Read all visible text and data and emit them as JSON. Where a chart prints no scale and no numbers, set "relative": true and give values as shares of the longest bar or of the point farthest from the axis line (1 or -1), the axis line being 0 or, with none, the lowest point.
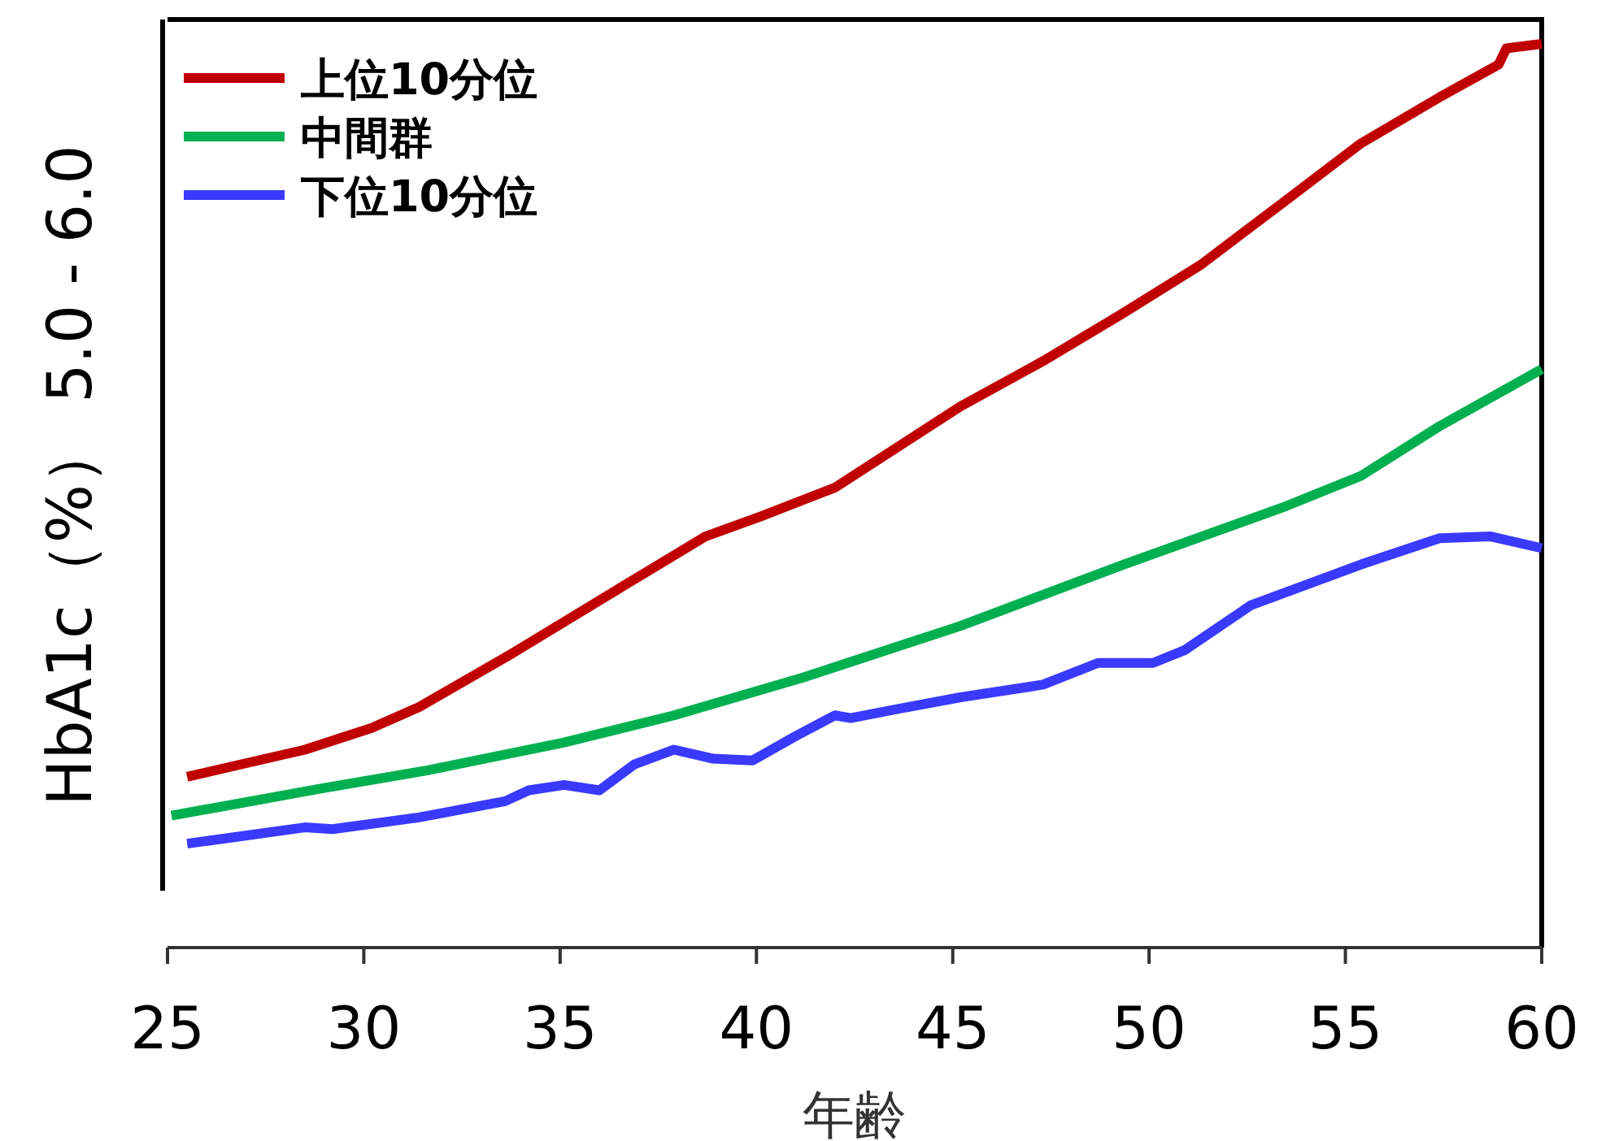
{
  "chart_data": {
    "type": "line",
    "xlabel": "年齢",
    "ylabel": "HbA1c（%） 5.0 - 6.0",
    "relative": true,
    "xlim": [
      25,
      60
    ],
    "xticks": [
      25,
      30,
      35,
      40,
      45,
      50,
      55,
      60
    ],
    "legend": "top left",
    "series": [
      {
        "name": "上位10分位",
        "color": "#c00000",
        "x": [
          25.5,
          26.9,
          28.5,
          30.2,
          31.4,
          33.8,
          36.3,
          38.7,
          40.1,
          42.0,
          43.6,
          45.2,
          47.3,
          49.3,
          51.3,
          53.4,
          55.4,
          57.4,
          58.9,
          59.1,
          60
        ],
        "values": [
          0.189,
          0.203,
          0.219,
          0.243,
          0.266,
          0.326,
          0.392,
          0.455,
          0.477,
          0.509,
          0.554,
          0.599,
          0.649,
          0.701,
          0.755,
          0.824,
          0.89,
          0.941,
          0.977,
          0.995,
          1
        ]
      },
      {
        "name": "中間群",
        "color": "#00b050",
        "x": [
          25.1,
          28.9,
          31.6,
          35.1,
          37.9,
          41.2,
          45.2,
          49.3,
          53.4,
          55.4,
          57.4,
          60
        ],
        "values": [
          0.146,
          0.176,
          0.196,
          0.227,
          0.257,
          0.299,
          0.356,
          0.423,
          0.487,
          0.522,
          0.577,
          0.64
        ]
      },
      {
        "name": "下位10分位",
        "color": "#3a3aff",
        "x": [
          25.5,
          28.5,
          29.2,
          31.4,
          33.6,
          34.2,
          35.1,
          36.0,
          36.9,
          37.9,
          38.9,
          39.9,
          41.0,
          42.0,
          42.4,
          43.6,
          45.2,
          47.3,
          48.7,
          50.1,
          50.9,
          52.6,
          55.4,
          57.4,
          58.7,
          60
        ],
        "values": [
          0.115,
          0.133,
          0.131,
          0.144,
          0.162,
          0.174,
          0.18,
          0.174,
          0.203,
          0.219,
          0.209,
          0.207,
          0.234,
          0.257,
          0.254,
          0.264,
          0.277,
          0.291,
          0.315,
          0.315,
          0.329,
          0.379,
          0.424,
          0.453,
          0.455,
          0.442
        ]
      }
    ]
  }
}
